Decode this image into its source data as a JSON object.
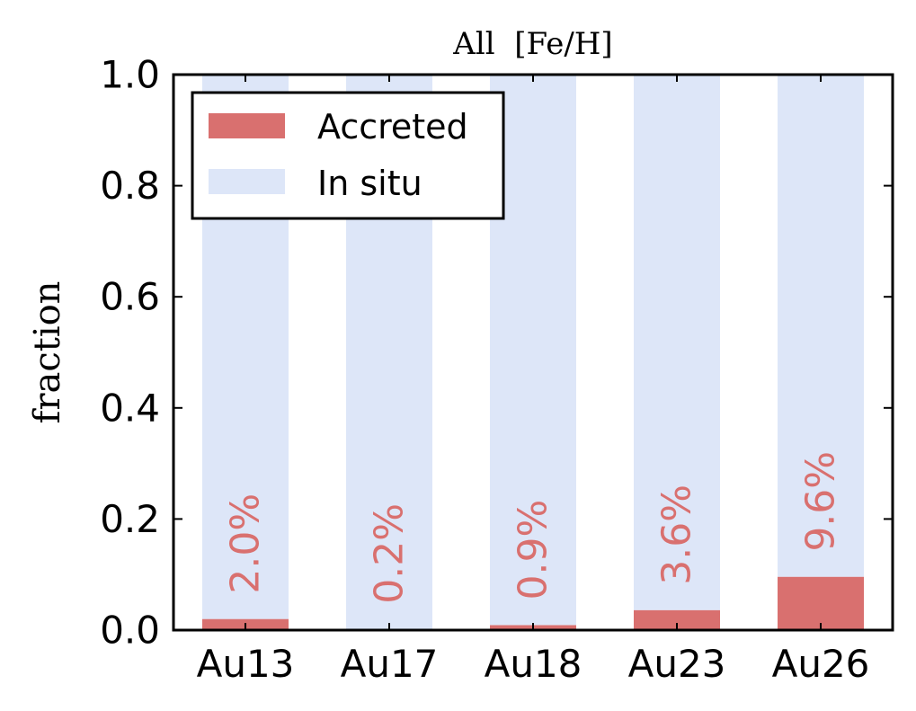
{
  "chart_data": {
    "type": "bar",
    "stacked": true,
    "title": "All  [Fe/H]",
    "ylabel": "fraction",
    "xlabel": "",
    "ylim": [
      0,
      1.0
    ],
    "yticks": [
      0.0,
      0.2,
      0.4,
      0.6,
      0.8,
      1.0
    ],
    "ytick_labels": [
      "0.0",
      "0.2",
      "0.4",
      "0.6",
      "0.8",
      "1.0"
    ],
    "categories": [
      "Au13",
      "Au17",
      "Au18",
      "Au23",
      "Au26"
    ],
    "series": [
      {
        "name": "Accreted",
        "color": "#d9706f",
        "values": [
          0.02,
          0.002,
          0.009,
          0.036,
          0.096
        ]
      },
      {
        "name": "In situ",
        "color": "#dde6f8",
        "values": [
          0.98,
          0.998,
          0.991,
          0.964,
          0.904
        ]
      }
    ],
    "bar_labels": [
      "2.0%",
      "0.2%",
      "0.9%",
      "3.6%",
      "9.6%"
    ],
    "bar_label_color": "#d9706f",
    "legend_position": "upper-left",
    "grid": false
  }
}
